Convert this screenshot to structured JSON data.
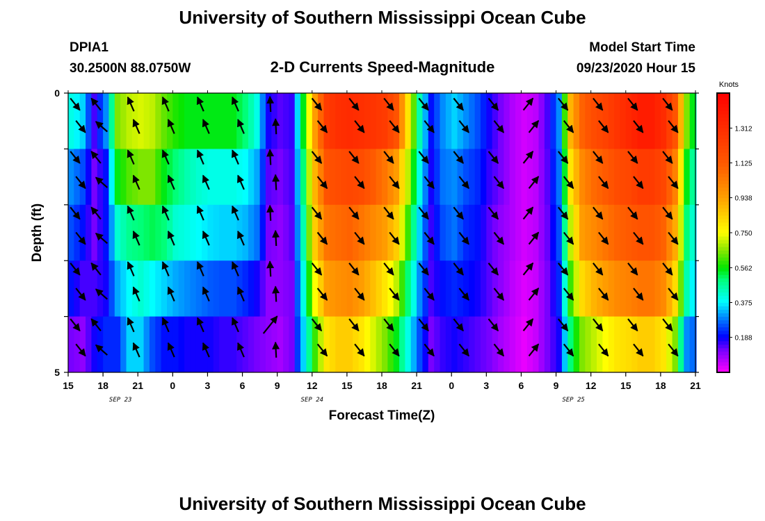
{
  "header": {
    "title_top": "University of Southern Mississippi Ocean Cube",
    "title_bottom": "University of Southern Mississippi Ocean Cube",
    "station": "DPIA1",
    "coords": "30.2500N 88.0750W",
    "subtitle": "2-D Currents Speed-Magnitude",
    "model_label": "Model Start Time",
    "model_time": "09/23/2020 Hour 15"
  },
  "colors": {
    "arrow": "#000000",
    "frame": "#000000",
    "background": "#ffffff"
  },
  "chart_data": {
    "type": "heatmap",
    "title": "2-D Currents Speed-Magnitude",
    "xlabel": "Forecast Time(Z)",
    "ylabel": "Depth (ft)",
    "x_range_hours": [
      0,
      54
    ],
    "x_ticks": [
      {
        "h": 0,
        "label": "15"
      },
      {
        "h": 3,
        "label": "18"
      },
      {
        "h": 6,
        "label": "21"
      },
      {
        "h": 9,
        "label": "0"
      },
      {
        "h": 12,
        "label": "3"
      },
      {
        "h": 15,
        "label": "6"
      },
      {
        "h": 18,
        "label": "9"
      },
      {
        "h": 21,
        "label": "12"
      },
      {
        "h": 24,
        "label": "15"
      },
      {
        "h": 27,
        "label": "18"
      },
      {
        "h": 30,
        "label": "21"
      },
      {
        "h": 33,
        "label": "0"
      },
      {
        "h": 36,
        "label": "3"
      },
      {
        "h": 39,
        "label": "6"
      },
      {
        "h": 42,
        "label": "9"
      },
      {
        "h": 45,
        "label": "12"
      },
      {
        "h": 48,
        "label": "15"
      },
      {
        "h": 51,
        "label": "18"
      },
      {
        "h": 54,
        "label": "21"
      }
    ],
    "date_labels": [
      {
        "h": 4.5,
        "label": "SEP 23"
      },
      {
        "h": 21,
        "label": "SEP 24"
      },
      {
        "h": 43.5,
        "label": "SEP 25"
      }
    ],
    "y_range_ft": [
      0,
      5
    ],
    "y_tick_labels": [
      {
        "ft": 0,
        "label": "0"
      },
      {
        "ft": 5,
        "label": "5"
      }
    ],
    "depths_ft": [
      0.5,
      1.5,
      2.5,
      3.5,
      4.5
    ],
    "colorbar": {
      "unit": "Knots",
      "min": 0,
      "max": 1.5,
      "labels": [
        "0.188",
        "0.375",
        "0.562",
        "0.750",
        "0.938",
        "1.125",
        "1.312"
      ],
      "label_values": [
        0.188,
        0.375,
        0.562,
        0.75,
        0.938,
        1.125,
        1.312
      ]
    },
    "speed_knots": [
      {
        "h": 0,
        "depth_values": [
          0.4,
          0.3,
          0.25,
          0.2,
          0.12
        ]
      },
      {
        "h": 1,
        "depth_values": [
          0.35,
          0.25,
          0.2,
          0.15,
          0.1
        ]
      },
      {
        "h": 2,
        "depth_values": [
          0.15,
          0.12,
          0.12,
          0.15,
          0.18
        ]
      },
      {
        "h": 3,
        "depth_values": [
          0.3,
          0.2,
          0.2,
          0.18,
          0.22
        ]
      },
      {
        "h": 4,
        "depth_values": [
          0.65,
          0.55,
          0.42,
          0.32,
          0.22
        ]
      },
      {
        "h": 5,
        "depth_values": [
          0.7,
          0.62,
          0.48,
          0.38,
          0.35
        ]
      },
      {
        "h": 6,
        "depth_values": [
          0.72,
          0.65,
          0.5,
          0.42,
          0.35
        ]
      },
      {
        "h": 7,
        "depth_values": [
          0.7,
          0.65,
          0.52,
          0.38,
          0.25
        ]
      },
      {
        "h": 8,
        "depth_values": [
          0.63,
          0.55,
          0.5,
          0.35,
          0.2
        ]
      },
      {
        "h": 9,
        "depth_values": [
          0.58,
          0.5,
          0.42,
          0.32,
          0.2
        ]
      },
      {
        "h": 10,
        "depth_values": [
          0.55,
          0.45,
          0.4,
          0.3,
          0.18
        ]
      },
      {
        "h": 11,
        "depth_values": [
          0.55,
          0.42,
          0.38,
          0.28,
          0.18
        ]
      },
      {
        "h": 12,
        "depth_values": [
          0.55,
          0.4,
          0.36,
          0.26,
          0.18
        ]
      },
      {
        "h": 13,
        "depth_values": [
          0.55,
          0.4,
          0.35,
          0.25,
          0.16
        ]
      },
      {
        "h": 14,
        "depth_values": [
          0.55,
          0.4,
          0.35,
          0.25,
          0.16
        ]
      },
      {
        "h": 15,
        "depth_values": [
          0.5,
          0.38,
          0.33,
          0.22,
          0.14
        ]
      },
      {
        "h": 16,
        "depth_values": [
          0.4,
          0.32,
          0.28,
          0.18,
          0.12
        ]
      },
      {
        "h": 17,
        "depth_values": [
          0.18,
          0.14,
          0.12,
          0.1,
          0.1
        ]
      },
      {
        "h": 18,
        "depth_values": [
          0.14,
          0.12,
          0.1,
          0.1,
          0.08
        ]
      },
      {
        "h": 19,
        "depth_values": [
          0.16,
          0.15,
          0.14,
          0.12,
          0.12
        ]
      },
      {
        "h": 20,
        "depth_values": [
          0.55,
          0.5,
          0.45,
          0.4,
          0.35
        ]
      },
      {
        "h": 21,
        "depth_values": [
          0.95,
          0.9,
          0.85,
          0.75,
          0.6
        ]
      },
      {
        "h": 22,
        "depth_values": [
          1.25,
          1.15,
          1.05,
          0.95,
          0.8
        ]
      },
      {
        "h": 23,
        "depth_values": [
          1.3,
          1.18,
          1.08,
          0.98,
          0.85
        ]
      },
      {
        "h": 24,
        "depth_values": [
          1.32,
          1.2,
          1.1,
          1.0,
          0.85
        ]
      },
      {
        "h": 25,
        "depth_values": [
          1.3,
          1.18,
          1.05,
          0.95,
          0.8
        ]
      },
      {
        "h": 26,
        "depth_values": [
          1.28,
          1.12,
          1.0,
          0.88,
          0.72
        ]
      },
      {
        "h": 27,
        "depth_values": [
          1.25,
          1.05,
          0.95,
          0.8,
          0.65
        ]
      },
      {
        "h": 28,
        "depth_values": [
          1.15,
          0.95,
          0.85,
          0.7,
          0.55
        ]
      },
      {
        "h": 29,
        "depth_values": [
          0.8,
          0.7,
          0.6,
          0.5,
          0.4
        ]
      },
      {
        "h": 30,
        "depth_values": [
          0.45,
          0.4,
          0.35,
          0.3,
          0.25
        ]
      },
      {
        "h": 31,
        "depth_values": [
          0.2,
          0.18,
          0.16,
          0.15,
          0.12
        ]
      },
      {
        "h": 32,
        "depth_values": [
          0.3,
          0.28,
          0.25,
          0.2,
          0.16
        ]
      },
      {
        "h": 33,
        "depth_values": [
          0.35,
          0.3,
          0.28,
          0.22,
          0.18
        ]
      },
      {
        "h": 34,
        "depth_values": [
          0.3,
          0.25,
          0.22,
          0.2,
          0.16
        ]
      },
      {
        "h": 35,
        "depth_values": [
          0.25,
          0.22,
          0.2,
          0.18,
          0.14
        ]
      },
      {
        "h": 36,
        "depth_values": [
          0.18,
          0.16,
          0.14,
          0.14,
          0.12
        ]
      },
      {
        "h": 37,
        "depth_values": [
          0.12,
          0.12,
          0.1,
          0.1,
          0.08
        ]
      },
      {
        "h": 38,
        "depth_values": [
          0.07,
          0.07,
          0.07,
          0.06,
          0.05
        ]
      },
      {
        "h": 39,
        "depth_values": [
          0.04,
          0.04,
          0.04,
          0.03,
          0.02
        ]
      },
      {
        "h": 40,
        "depth_values": [
          0.06,
          0.06,
          0.06,
          0.05,
          0.05
        ]
      },
      {
        "h": 41,
        "depth_values": [
          0.15,
          0.14,
          0.13,
          0.12,
          0.12
        ]
      },
      {
        "h": 42,
        "depth_values": [
          0.3,
          0.28,
          0.25,
          0.22,
          0.18
        ]
      },
      {
        "h": 43,
        "depth_values": [
          0.9,
          0.8,
          0.7,
          0.6,
          0.5
        ]
      },
      {
        "h": 44,
        "depth_values": [
          1.1,
          1.0,
          0.95,
          0.82,
          0.65
        ]
      },
      {
        "h": 45,
        "depth_values": [
          1.18,
          1.08,
          1.0,
          0.9,
          0.7
        ]
      },
      {
        "h": 46,
        "depth_values": [
          1.22,
          1.12,
          1.05,
          0.95,
          0.75
        ]
      },
      {
        "h": 47,
        "depth_values": [
          1.28,
          1.18,
          1.1,
          1.0,
          0.8
        ]
      },
      {
        "h": 48,
        "depth_values": [
          1.33,
          1.2,
          1.12,
          1.02,
          0.82
        ]
      },
      {
        "h": 49,
        "depth_values": [
          1.38,
          1.25,
          1.15,
          1.05,
          0.85
        ]
      },
      {
        "h": 50,
        "depth_values": [
          1.38,
          1.25,
          1.15,
          1.05,
          0.85
        ]
      },
      {
        "h": 51,
        "depth_values": [
          1.32,
          1.2,
          1.1,
          1.0,
          0.8
        ]
      },
      {
        "h": 52,
        "depth_values": [
          1.15,
          1.02,
          0.92,
          0.82,
          0.65
        ]
      },
      {
        "h": 53,
        "depth_values": [
          0.65,
          0.55,
          0.5,
          0.45,
          0.3
        ]
      },
      {
        "h": 54,
        "depth_values": [
          0.45,
          0.4,
          0.35,
          0.3,
          0.25
        ]
      }
    ],
    "vector_columns": [
      {
        "h": 0.6,
        "dir": "SE"
      },
      {
        "h": 2.4,
        "dir": "NW"
      },
      {
        "h": 5.4,
        "dir": "NNW"
      },
      {
        "h": 8.4,
        "dir": "NNW"
      },
      {
        "h": 11.4,
        "dir": "NNW"
      },
      {
        "h": 14.4,
        "dir": "NNW"
      },
      {
        "h": 17.4,
        "dir": "N",
        "bottom_dir": "NE"
      },
      {
        "h": 21.4,
        "dir": "SE"
      },
      {
        "h": 24.6,
        "dir": "SE"
      },
      {
        "h": 27.6,
        "dir": "SE"
      },
      {
        "h": 30.6,
        "dir": "SE"
      },
      {
        "h": 33.6,
        "dir": "SE"
      },
      {
        "h": 36.6,
        "dir": "SE"
      },
      {
        "h": 39.6,
        "dir": "NE"
      },
      {
        "h": 42.6,
        "dir": "SE"
      },
      {
        "h": 45.6,
        "dir": "SE"
      },
      {
        "h": 48.6,
        "dir": "SE"
      },
      {
        "h": 51.6,
        "dir": "SE"
      }
    ],
    "vector_rows_ft": [
      0.15,
      0.6,
      1.1,
      1.6,
      2.1,
      2.6,
      3.1,
      3.6,
      4.1,
      4.6
    ],
    "vector_row_offsets": [
      0,
      1,
      0,
      1,
      0,
      1,
      0,
      1,
      0,
      1
    ]
  }
}
